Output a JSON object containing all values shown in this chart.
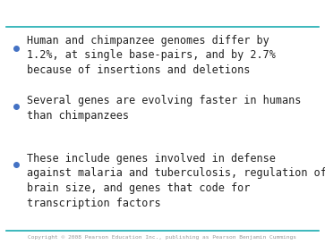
{
  "background_color": "#ffffff",
  "top_line_color": "#1aacb0",
  "bottom_line_color": "#1aacb0",
  "bullet_color": "#4472c4",
  "text_color": "#222222",
  "footer_color": "#999999",
  "footer_text": "Copyright © 2008 Pearson Education Inc., publishing as Pearson Benjamin Cummings",
  "bullet_points": [
    "Human and chimpanzee genomes differ by\n1.2%, at single base-pairs, and by 2.7%\nbecause of insertions and deletions",
    "Several genes are evolving faster in humans\nthan chimpanzees",
    "These include genes involved in defense\nagainst malaria and tuberculosis, regulation of\nbrain size, and genes that code for\ntranscription factors"
  ],
  "font_size": 8.5,
  "footer_font_size": 4.5,
  "line_width": 1.2,
  "bullet_color_dot": "#4472c4"
}
